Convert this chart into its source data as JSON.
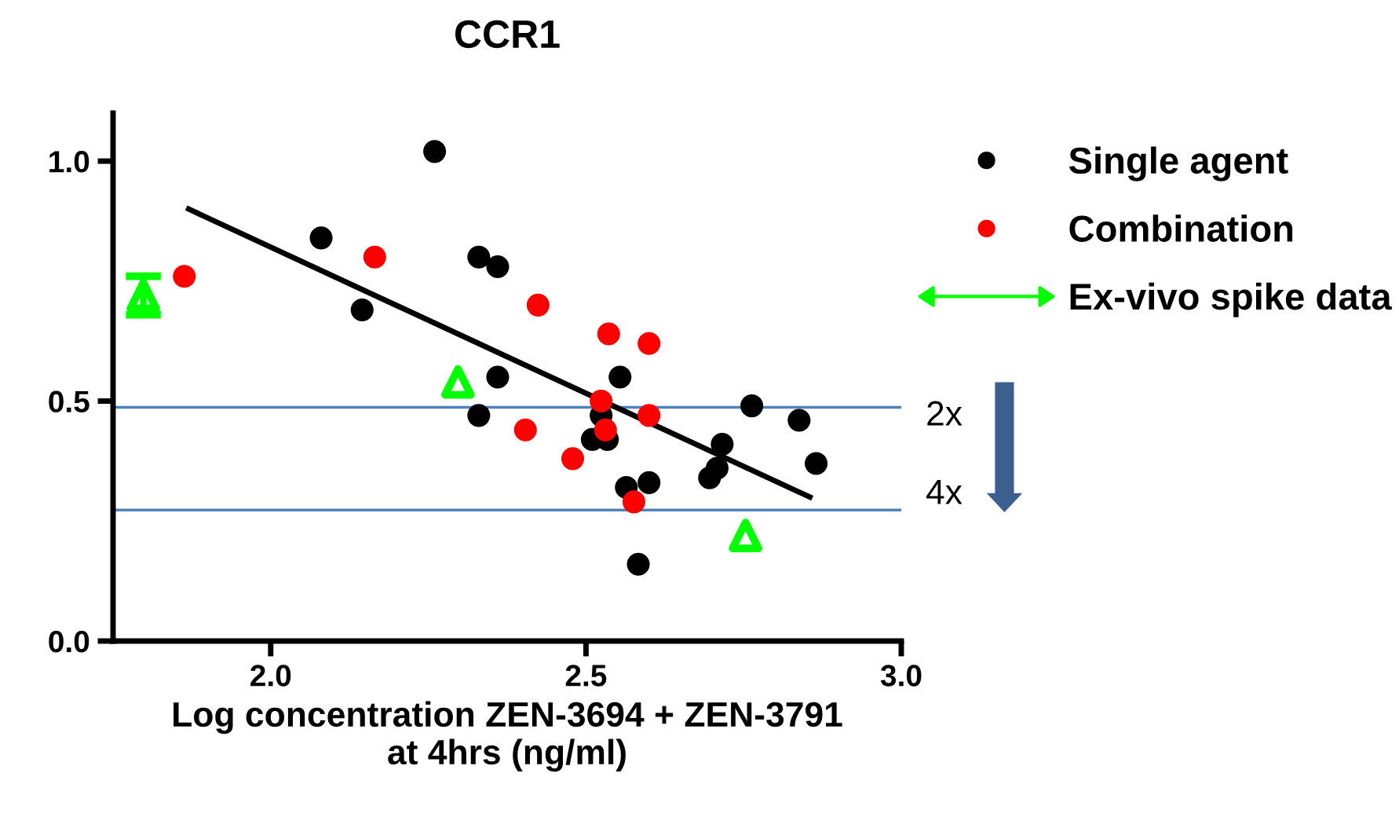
{
  "chart_data": {
    "type": "scatter",
    "title": "CCR1",
    "xlabel": "Log concentration ZEN-3694 + ZEN-3791\nat 4hrs (ng/ml)",
    "xlim": [
      1.75,
      3.0
    ],
    "xticks": [
      {
        "value": 2,
        "label": "2.0"
      },
      {
        "value": 2.5,
        "label": "2.5"
      },
      {
        "value": 3,
        "label": "3.0"
      }
    ],
    "ylim": [
      0,
      1.1
    ],
    "yticks": [
      {
        "value": 0,
        "label": "0.0"
      },
      {
        "value": 0.5,
        "label": "0.5"
      },
      {
        "value": 1,
        "label": "1.0"
      }
    ],
    "grid": false,
    "legend": "right",
    "series": [
      {
        "name": "Single agent",
        "marker": "circle",
        "color": "#000000",
        "x": [
          2.08,
          2.145,
          2.26,
          2.33,
          2.36,
          2.33,
          2.36,
          2.554,
          2.524,
          2.51,
          2.534,
          2.564,
          2.6,
          2.583,
          2.716,
          2.708,
          2.696,
          2.763,
          2.838,
          2.865
        ],
        "values": [
          0.84,
          0.69,
          1.02,
          0.8,
          0.78,
          0.47,
          0.55,
          0.55,
          0.47,
          0.42,
          0.42,
          0.32,
          0.33,
          0.16,
          0.41,
          0.36,
          0.34,
          0.49,
          0.46,
          0.37
        ]
      },
      {
        "name": "Combination",
        "marker": "circle",
        "color": "#ff0000",
        "x": [
          1.863,
          2.165,
          2.424,
          2.536,
          2.6,
          2.524,
          2.6,
          2.531,
          2.404,
          2.479,
          2.576
        ],
        "values": [
          0.76,
          0.8,
          0.7,
          0.64,
          0.62,
          0.5,
          0.47,
          0.44,
          0.44,
          0.38,
          0.29
        ]
      },
      {
        "name": "Ex-vivo spike data",
        "marker": "triangle",
        "color": "#00ff00",
        "x": [
          1.798,
          2.297,
          2.753
        ],
        "values": [
          0.72,
          0.54,
          0.22
        ],
        "errors": [
          [
            0.68,
            0.76
          ],
          null,
          null
        ]
      },
      {
        "type": "line",
        "marker": "none",
        "color": "#000000",
        "x": [
          1.87,
          2.855
        ],
        "values": [
          0.9,
          0.3
        ]
      }
    ],
    "ref_lines": [
      {
        "axis": "y",
        "value": 0.487,
        "color": "#4f81bd"
      },
      {
        "axis": "y",
        "value": 0.273,
        "color": "#4f81bd"
      }
    ],
    "annotations": [
      "2x",
      "4x"
    ]
  }
}
